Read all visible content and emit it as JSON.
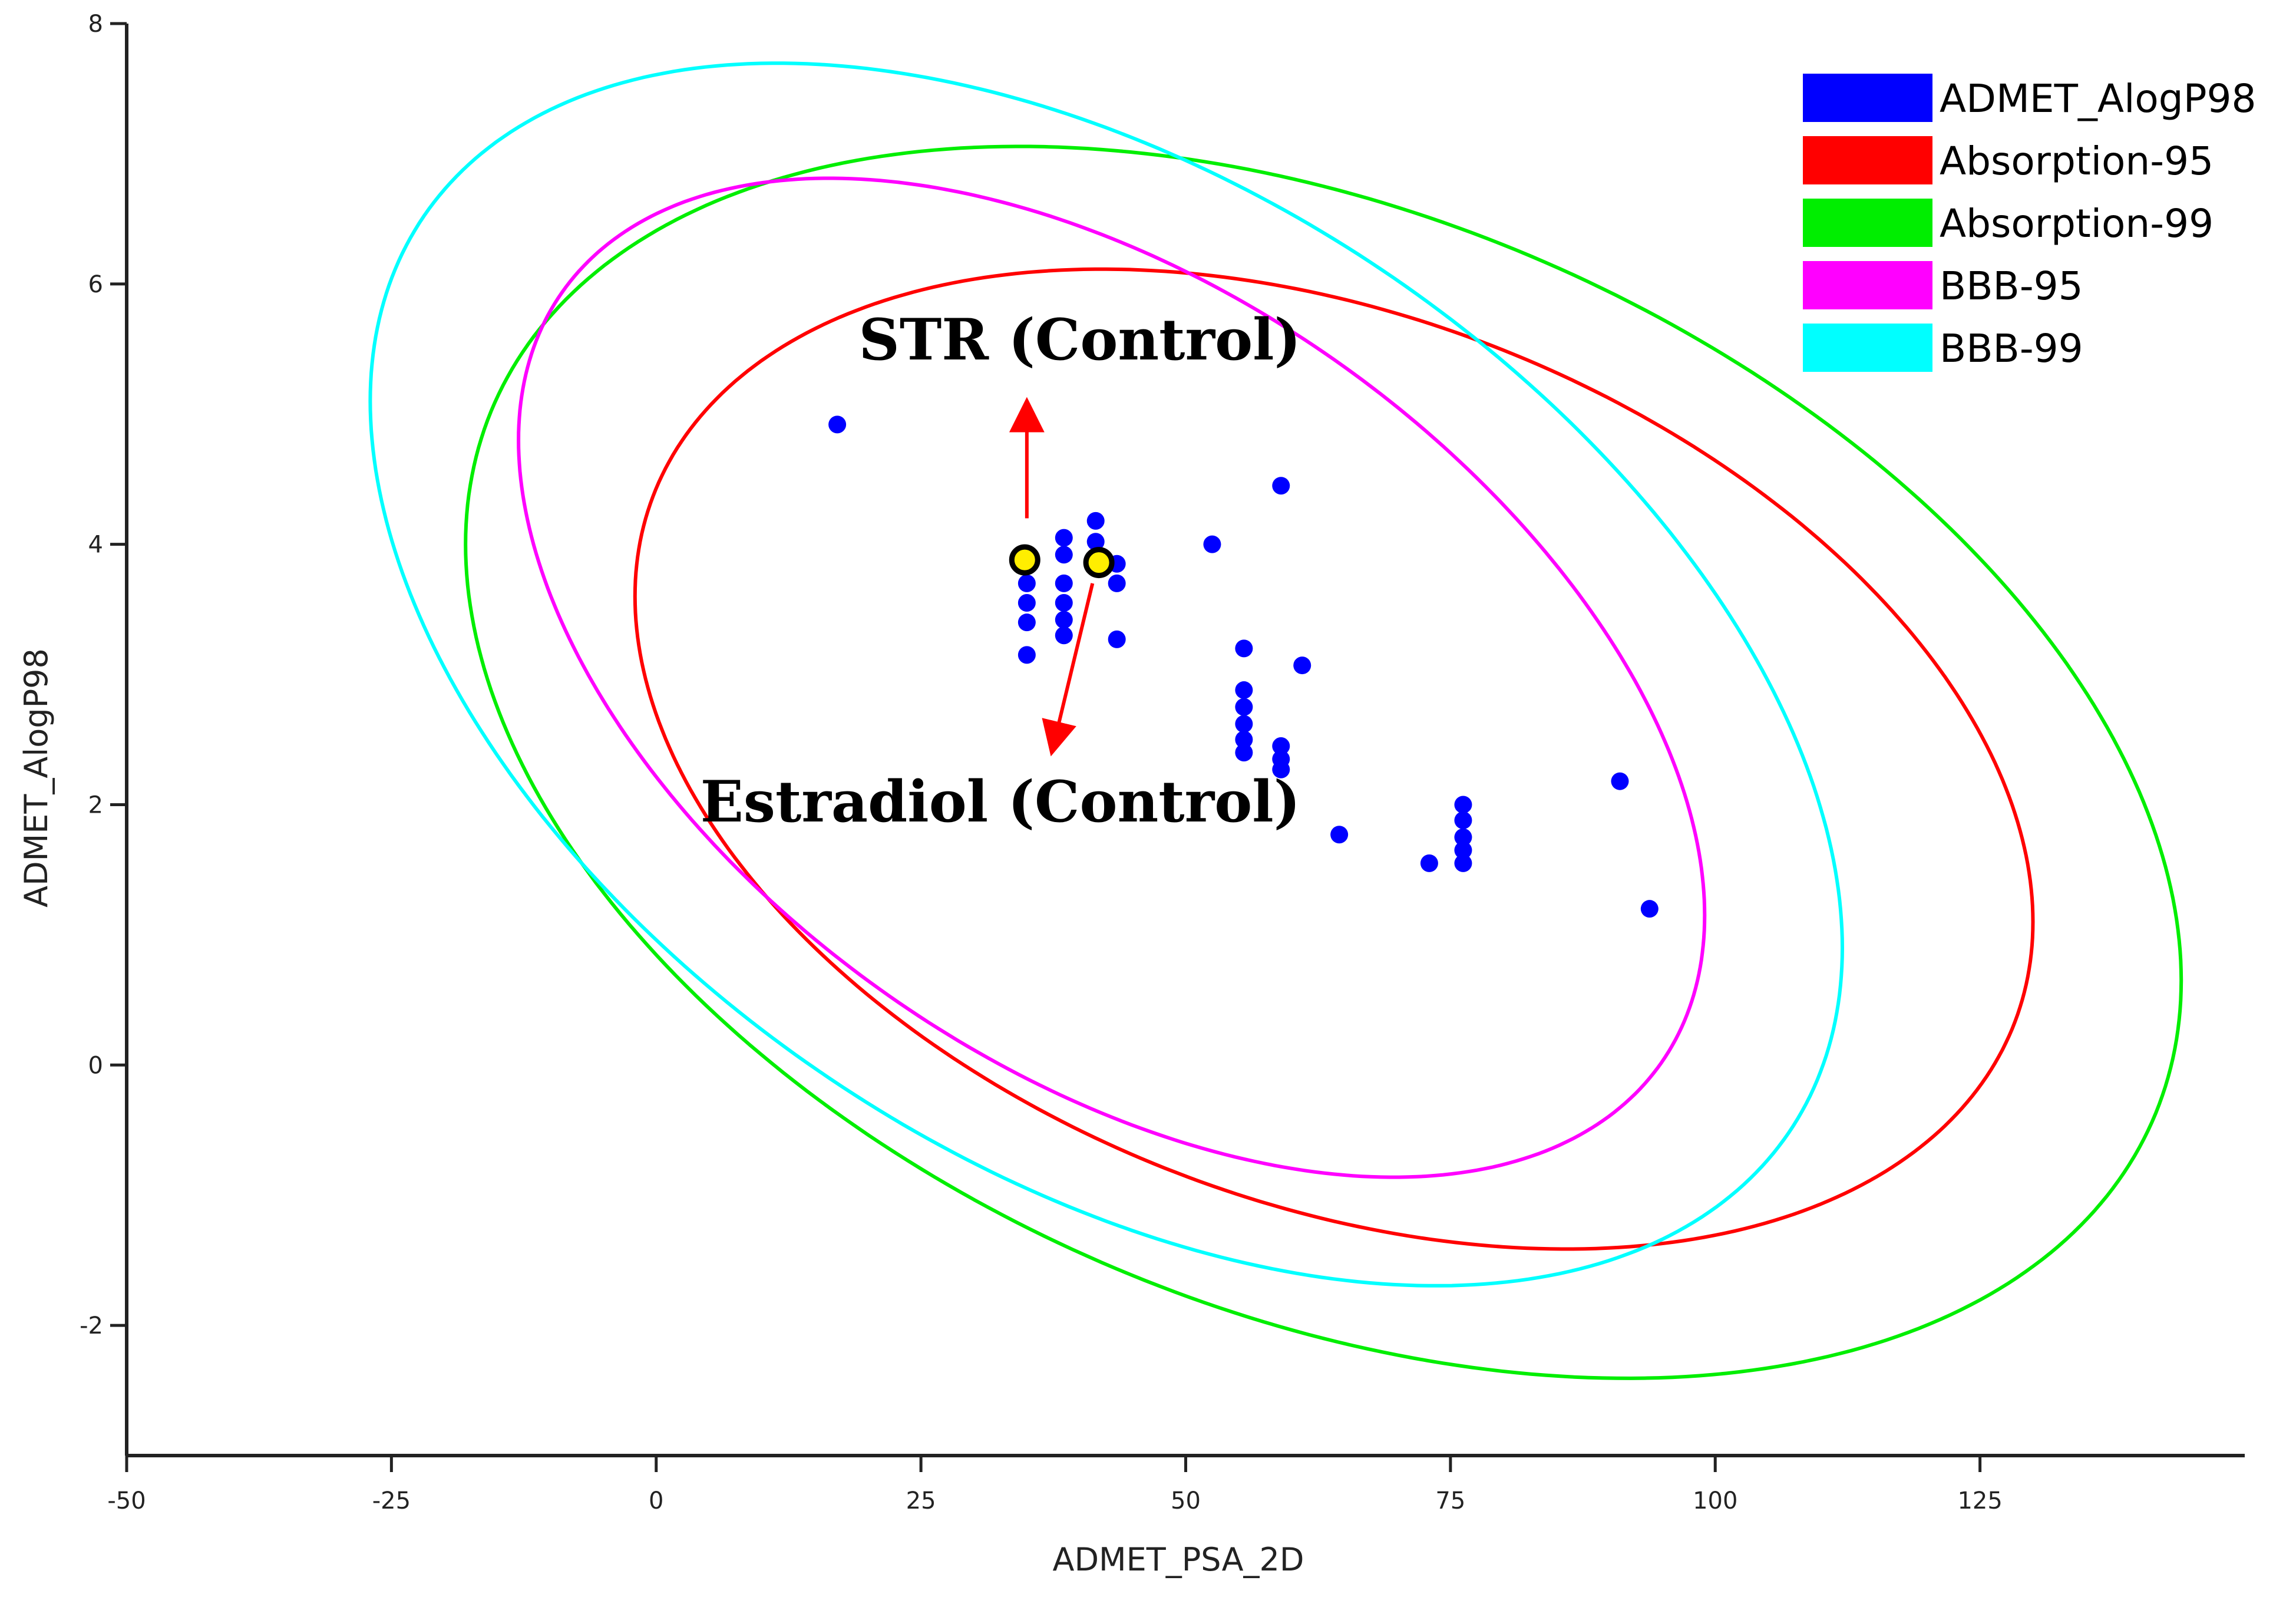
{
  "chart_data": {
    "type": "scatter",
    "xlabel": "ADMET_PSA_2D",
    "ylabel": "ADMET_AlogP98",
    "xlim": [
      -50,
      150
    ],
    "ylim": [
      -3,
      8
    ],
    "xticks": [
      -50,
      -25,
      0,
      25,
      50,
      75,
      100,
      125
    ],
    "yticks": [
      -2,
      0,
      2,
      4,
      6,
      8
    ],
    "grid": false,
    "legend_position": "top-right",
    "legend": [
      {
        "label": "ADMET_AlogP98",
        "color": "#0000ff"
      },
      {
        "label": "Absorption-95",
        "color": "#ff0000"
      },
      {
        "label": "Absorption-99",
        "color": "#00ee00"
      },
      {
        "label": "BBB-95",
        "color": "#ff00ff"
      },
      {
        "label": "BBB-99",
        "color": "#00ffff"
      }
    ],
    "ellipses": [
      {
        "name": "Absorption-95",
        "color": "#ff0000",
        "left": -2,
        "right": 130,
        "top": 5.9,
        "bottom": -1.2,
        "leftmost_y": 3.6,
        "rightmost_y": 1.0
      },
      {
        "name": "Absorption-99",
        "color": "#00ee00",
        "left": -18,
        "right": 144,
        "top": 6.75,
        "bottom": -2.1,
        "leftmost_y": 4.0,
        "rightmost_y": 0.8
      },
      {
        "name": "BBB-95",
        "color": "#ff00ff",
        "left": -13,
        "right": 99,
        "top": 6.35,
        "bottom": -0.4,
        "leftmost_y": 4.8,
        "rightmost_y": 1.3
      },
      {
        "name": "BBB-99",
        "color": "#00ffff",
        "left": -27,
        "right": 112,
        "top": 7.2,
        "bottom": -1.2,
        "leftmost_y": 5.1,
        "rightmost_y": 0.9
      }
    ],
    "points": [
      {
        "x": 17.1,
        "y": 4.92
      },
      {
        "x": 35,
        "y": 3.85
      },
      {
        "x": 35,
        "y": 3.7
      },
      {
        "x": 35,
        "y": 3.55
      },
      {
        "x": 35,
        "y": 3.4
      },
      {
        "x": 35,
        "y": 3.15
      },
      {
        "x": 38.5,
        "y": 4.05
      },
      {
        "x": 38.5,
        "y": 3.92
      },
      {
        "x": 38.5,
        "y": 3.7
      },
      {
        "x": 38.5,
        "y": 3.55
      },
      {
        "x": 38.5,
        "y": 3.42
      },
      {
        "x": 38.5,
        "y": 3.3
      },
      {
        "x": 41.5,
        "y": 4.18
      },
      {
        "x": 41.5,
        "y": 4.02
      },
      {
        "x": 43.5,
        "y": 3.85
      },
      {
        "x": 43.5,
        "y": 3.7
      },
      {
        "x": 43.5,
        "y": 3.27
      },
      {
        "x": 52.5,
        "y": 4.0
      },
      {
        "x": 59,
        "y": 4.45
      },
      {
        "x": 55.5,
        "y": 3.2
      },
      {
        "x": 55.5,
        "y": 2.88
      },
      {
        "x": 55.5,
        "y": 2.75
      },
      {
        "x": 55.5,
        "y": 2.62
      },
      {
        "x": 55.5,
        "y": 2.5
      },
      {
        "x": 55.5,
        "y": 2.4
      },
      {
        "x": 59,
        "y": 2.45
      },
      {
        "x": 59,
        "y": 2.35
      },
      {
        "x": 59,
        "y": 2.27
      },
      {
        "x": 61,
        "y": 3.07
      },
      {
        "x": 64.5,
        "y": 1.77
      },
      {
        "x": 73,
        "y": 1.55
      },
      {
        "x": 76.2,
        "y": 2.0
      },
      {
        "x": 76.2,
        "y": 1.88
      },
      {
        "x": 76.2,
        "y": 1.75
      },
      {
        "x": 76.2,
        "y": 1.65
      },
      {
        "x": 76.2,
        "y": 1.55
      },
      {
        "x": 91,
        "y": 2.18
      },
      {
        "x": 93.8,
        "y": 1.2
      }
    ],
    "highlighted": [
      {
        "x": 34.8,
        "y": 3.88
      },
      {
        "x": 41.8,
        "y": 3.86
      }
    ],
    "annotations": [
      {
        "text": "STR (Control)",
        "x": 40,
        "y": 5.42,
        "arrow_from": {
          "x": 35,
          "y": 4.2
        },
        "arrow_to": {
          "x": 35,
          "y": 5.05
        }
      },
      {
        "text": "Estradiol (Control)",
        "x": 32.5,
        "y": 1.87,
        "arrow_from": {
          "x": 41.2,
          "y": 3.7
        },
        "arrow_to": {
          "x": 37.5,
          "y": 2.45
        }
      }
    ]
  }
}
